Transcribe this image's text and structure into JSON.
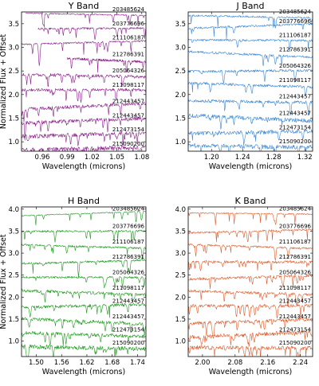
{
  "chart_data": [
    {
      "type": "line",
      "title": "Y Band",
      "xlabel": "Wavelength (microns)",
      "ylabel": "Normalized Flux + Offset",
      "xlim": [
        0.935,
        1.085
      ],
      "ylim": [
        0.8,
        3.75
      ],
      "xticks": [
        0.96,
        0.99,
        1.02,
        1.05,
        1.08
      ],
      "xtick_labels": [
        "0.96",
        "0.99",
        "1.02",
        "1.05",
        "1.08"
      ],
      "yticks": [
        1.0,
        1.5,
        2.0,
        2.5,
        3.0,
        3.5
      ],
      "ytick_labels": [
        "1.0",
        "1.5",
        "2.0",
        "2.5",
        "3.0",
        "3.5"
      ],
      "color": "#8b1f8b",
      "grid": false,
      "series": [
        {
          "name": "203485624",
          "offset": 3.7,
          "x_start": 0.94
        },
        {
          "name": "203776696",
          "offset": 3.4,
          "x_start": 0.955
        },
        {
          "name": "211106187",
          "offset": 3.1,
          "x_start": 0.935
        },
        {
          "name": "212786391",
          "offset": 2.75,
          "x_start": 0.99
        },
        {
          "name": "205064326",
          "offset": 2.4,
          "x_start": 0.935
        },
        {
          "name": "211098117",
          "offset": 2.1,
          "x_start": 0.935
        },
        {
          "name": "212443457",
          "offset": 1.75,
          "x_start": 0.935
        },
        {
          "name": "212443457",
          "offset": 1.45,
          "x_start": 0.935
        },
        {
          "name": "212473154",
          "offset": 1.15,
          "x_start": 0.935
        },
        {
          "name": "215090200",
          "offset": 0.85,
          "x_start": 0.935
        }
      ]
    },
    {
      "type": "line",
      "title": "J Band",
      "xlabel": "Wavelength (microns)",
      "ylabel": "",
      "xlim": [
        1.17,
        1.33
      ],
      "ylim": [
        0.8,
        3.75
      ],
      "xticks": [
        1.2,
        1.24,
        1.28,
        1.32
      ],
      "xtick_labels": [
        "1.20",
        "1.24",
        "1.28",
        "1.32"
      ],
      "yticks": [
        1.0,
        1.5,
        2.0,
        2.5,
        3.0,
        3.5
      ],
      "ytick_labels": [
        "1.0",
        "1.5",
        "2.0",
        "2.5",
        "3.0",
        "3.5"
      ],
      "color": "#3a86d4",
      "grid": false,
      "series": [
        {
          "name": "203485624",
          "offset": 3.65,
          "x_start": 1.17
        },
        {
          "name": "203776696",
          "offset": 3.45,
          "x_start": 1.17
        },
        {
          "name": "211106187",
          "offset": 3.15,
          "x_start": 1.17
        },
        {
          "name": "212786391",
          "offset": 2.85,
          "x_start": 1.17
        },
        {
          "name": "205064326",
          "offset": 2.5,
          "x_start": 1.17
        },
        {
          "name": "211098117",
          "offset": 2.2,
          "x_start": 1.17
        },
        {
          "name": "212443457",
          "offset": 1.85,
          "x_start": 1.17
        },
        {
          "name": "212443457",
          "offset": 1.5,
          "x_start": 1.17
        },
        {
          "name": "212473154",
          "offset": 1.2,
          "x_start": 1.17
        },
        {
          "name": "215090200",
          "offset": 0.9,
          "x_start": 1.17
        }
      ]
    },
    {
      "type": "line",
      "title": "H Band",
      "xlabel": "Wavelength (microns)",
      "ylabel": "Normalized Flux + Offset",
      "xlim": [
        1.465,
        1.76
      ],
      "ylim": [
        0.65,
        4.05
      ],
      "xticks": [
        1.5,
        1.56,
        1.62,
        1.68,
        1.74
      ],
      "xtick_labels": [
        "1.50",
        "1.56",
        "1.62",
        "1.68",
        "1.74"
      ],
      "yticks": [
        1.0,
        1.5,
        2.0,
        2.5,
        3.0,
        3.5,
        4.0
      ],
      "ytick_labels": [
        "1.0",
        "1.5",
        "2.0",
        "2.5",
        "3.0",
        "3.5",
        "4.0"
      ],
      "color": "#1c9a1c",
      "grid": false,
      "series": [
        {
          "name": "203485624",
          "offset": 3.9,
          "x_start": 1.465
        },
        {
          "name": "203776696",
          "offset": 3.5,
          "x_start": 1.465
        },
        {
          "name": "211106187",
          "offset": 3.15,
          "x_start": 1.465
        },
        {
          "name": "212786391",
          "offset": 2.8,
          "x_start": 1.465
        },
        {
          "name": "205064326",
          "offset": 2.45,
          "x_start": 1.465
        },
        {
          "name": "211098117",
          "offset": 2.1,
          "x_start": 1.465
        },
        {
          "name": "212443457",
          "offset": 1.8,
          "x_start": 1.465
        },
        {
          "name": "212443457",
          "offset": 1.45,
          "x_start": 1.465
        },
        {
          "name": "212473154",
          "offset": 1.15,
          "x_start": 1.465
        },
        {
          "name": "215090200",
          "offset": 0.85,
          "x_start": 1.465
        }
      ]
    },
    {
      "type": "line",
      "title": "K Band",
      "xlabel": "Wavelength (microns)",
      "ylabel": "",
      "xlim": [
        1.965,
        2.27
      ],
      "ylim": [
        0.65,
        4.05
      ],
      "xticks": [
        2.0,
        2.08,
        2.16,
        2.24
      ],
      "xtick_labels": [
        "2.00",
        "2.08",
        "2.16",
        "2.24"
      ],
      "yticks": [
        1.0,
        1.5,
        2.0,
        2.5,
        3.0,
        3.5,
        4.0
      ],
      "ytick_labels": [
        "1.0",
        "1.5",
        "2.0",
        "2.5",
        "3.0",
        "3.5",
        "4.0"
      ],
      "color": "#e05a28",
      "grid": false,
      "series": [
        {
          "name": "203485624",
          "offset": 3.9,
          "x_start": 1.965
        },
        {
          "name": "203776696",
          "offset": 3.5,
          "x_start": 1.965
        },
        {
          "name": "211106187",
          "offset": 3.15,
          "x_start": 1.965
        },
        {
          "name": "212786391",
          "offset": 2.8,
          "x_start": 1.965
        },
        {
          "name": "205064326",
          "offset": 2.45,
          "x_start": 1.965
        },
        {
          "name": "211098117",
          "offset": 2.1,
          "x_start": 1.965
        },
        {
          "name": "212443457",
          "offset": 1.8,
          "x_start": 1.965
        },
        {
          "name": "212443457",
          "offset": 1.45,
          "x_start": 1.965
        },
        {
          "name": "212473154",
          "offset": 1.15,
          "x_start": 1.965
        },
        {
          "name": "215090200",
          "offset": 0.85,
          "x_start": 1.965
        }
      ]
    }
  ]
}
